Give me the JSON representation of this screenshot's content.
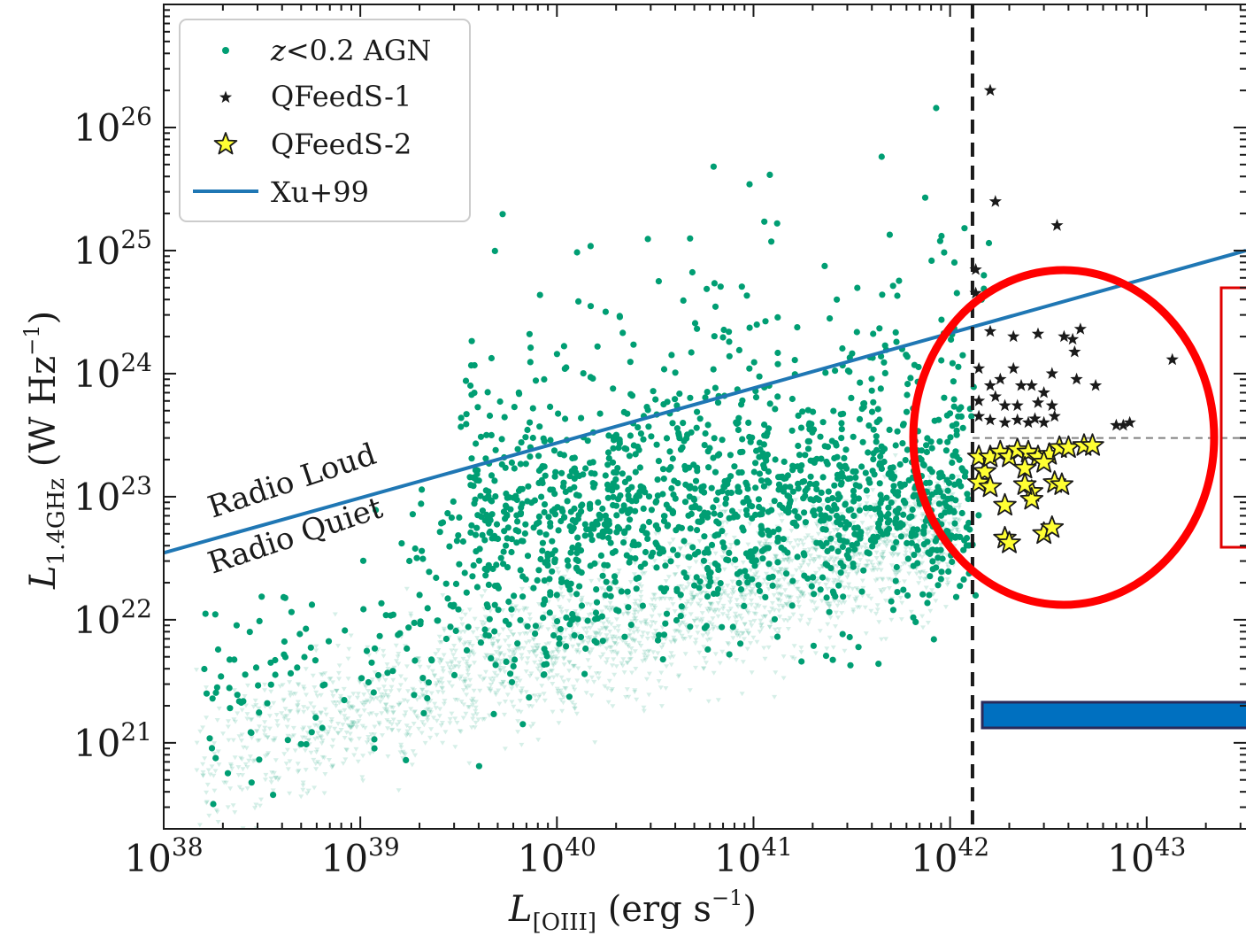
{
  "chart_data": {
    "type": "scatter",
    "x_scale": "log",
    "y_scale": "log",
    "xlim": [
      1e+38,
      3.2e+43
    ],
    "ylim": [
      2e+20,
      1e+27
    ],
    "x_ticks": [
      {
        "value": 1e+38,
        "base": "10",
        "exp": "38"
      },
      {
        "value": 1e+39,
        "base": "10",
        "exp": "39"
      },
      {
        "value": 1e+40,
        "base": "10",
        "exp": "40"
      },
      {
        "value": 1e+41,
        "base": "10",
        "exp": "41"
      },
      {
        "value": 1e+42,
        "base": "10",
        "exp": "42"
      },
      {
        "value": 1e+43,
        "base": "10",
        "exp": "43"
      }
    ],
    "y_ticks": [
      {
        "value": 1e+21,
        "base": "10",
        "exp": "21"
      },
      {
        "value": 1e+22,
        "base": "10",
        "exp": "22"
      },
      {
        "value": 1e+23,
        "base": "10",
        "exp": "23"
      },
      {
        "value": 1e+24,
        "base": "10",
        "exp": "24"
      },
      {
        "value": 1e+25,
        "base": "10",
        "exp": "25"
      },
      {
        "value": 1e+26,
        "base": "10",
        "exp": "26"
      }
    ],
    "xlabel": {
      "main": "L",
      "sub": "[OIII]",
      "unit": " (erg s",
      "unit_exp": "−1",
      "close": ")"
    },
    "ylabel": {
      "main": "L",
      "sub": "1.4GHz",
      "unit": " (W Hz",
      "unit_exp": "−1",
      "close": ")"
    },
    "grid": false,
    "legend": {
      "placement": "upper-left",
      "entries": [
        {
          "marker": "dot",
          "italic": "z",
          "text": "<0.2 AGN"
        },
        {
          "marker": "small-star",
          "italic": "",
          "text": "QFeedS-1"
        },
        {
          "marker": "yellow-star",
          "italic": "",
          "text": "QFeedS-2"
        },
        {
          "marker": "line",
          "italic": "",
          "text": "Xu+99"
        }
      ]
    },
    "annotations": {
      "radio_loud": "Radio Loud",
      "radio_quiet": "Radio Quiet"
    },
    "colors": {
      "agn": "#009e73",
      "qfeeds1": "#1a1a1a",
      "qfeeds2": "#ffff33",
      "xu99_line": "#1f77b4",
      "highlight_circle": "#ff0000",
      "highlight_box": "#e00000",
      "bar_fill": "#0070c0",
      "bar_edge": "#2a2a5a"
    },
    "xu99_line": {
      "x": [
        1e+38,
        3.2e+43
      ],
      "y": [
        3.5e+22,
        1e+25
      ]
    },
    "luminosity_cut": {
      "x": 1.3e+42
    },
    "qfeeds_threshold": {
      "y": 3e+23,
      "x_start": 1.3e+42
    },
    "series": [
      {
        "name": "QFeedS-1",
        "marker": "small-star",
        "points": [
          [
            1.6e+42,
            2e+26
          ],
          [
            1.7e+42,
            2.5e+25
          ],
          [
            3.5e+42,
            1.6e+25
          ],
          [
            1.35e+42,
            7e+24
          ],
          [
            1.35e+42,
            4.5e+24
          ],
          [
            1.6e+42,
            2.2e+24
          ],
          [
            2.1e+42,
            2e+24
          ],
          [
            2.8e+42,
            2.1e+24
          ],
          [
            3.8e+42,
            2e+24
          ],
          [
            4.2e+42,
            1.9e+24
          ],
          [
            4.6e+42,
            2.3e+24
          ],
          [
            4.3e+42,
            1.5e+24
          ],
          [
            1.4e+42,
            1.1e+24
          ],
          [
            1.8e+42,
            9e+23
          ],
          [
            2.1e+42,
            1.1e+24
          ],
          [
            1.6e+42,
            8e+23
          ],
          [
            2.3e+42,
            8e+23
          ],
          [
            2.6e+42,
            8e+23
          ],
          [
            3e+42,
            7e+23
          ],
          [
            3.3e+42,
            1e+24
          ],
          [
            4.4e+42,
            9e+23
          ],
          [
            5.5e+42,
            8e+23
          ],
          [
            1.4e+42,
            6e+23
          ],
          [
            1.7e+42,
            6.5e+23
          ],
          [
            1.9e+42,
            5.5e+23
          ],
          [
            2.2e+42,
            5.5e+23
          ],
          [
            2.8e+42,
            5.8e+23
          ],
          [
            3.3e+42,
            5.5e+23
          ],
          [
            1.4e+42,
            4.5e+23
          ],
          [
            1.6e+42,
            4.2e+23
          ],
          [
            2.2e+42,
            4.2e+23
          ],
          [
            2.5e+42,
            4e+23
          ],
          [
            3e+42,
            4e+23
          ],
          [
            3.4e+42,
            4.5e+23
          ],
          [
            7e+42,
            3.8e+23
          ],
          [
            7.6e+42,
            3.8e+23
          ],
          [
            8.2e+42,
            4e+23
          ],
          [
            1.35e+43,
            1.3e+24
          ],
          [
            1.9e+42,
            4e+23
          ],
          [
            2.7e+42,
            4.3e+23
          ]
        ]
      },
      {
        "name": "QFeedS-2",
        "marker": "yellow-star",
        "points": [
          [
            1.4e+42,
            2.1e+23
          ],
          [
            1.5e+42,
            1.6e+23
          ],
          [
            1.6e+42,
            2.1e+23
          ],
          [
            1.8e+42,
            2.3e+23
          ],
          [
            2e+42,
            2.1e+23
          ],
          [
            2.2e+42,
            2.4e+23
          ],
          [
            2.5e+42,
            2.3e+23
          ],
          [
            2.8e+42,
            2.1e+23
          ],
          [
            3.2e+42,
            2.2e+23
          ],
          [
            3.6e+42,
            2.5e+23
          ],
          [
            4e+42,
            2.5e+23
          ],
          [
            4.8e+42,
            2.6e+23
          ],
          [
            5.3e+42,
            2.6e+23
          ],
          [
            2.4e+42,
            1.7e+23
          ],
          [
            3e+42,
            1.9e+23
          ],
          [
            1.4e+42,
            1.3e+23
          ],
          [
            1.6e+42,
            1.2e+23
          ],
          [
            2.6e+42,
            1.1e+23
          ],
          [
            3.4e+42,
            1.3e+23
          ],
          [
            1.9e+42,
            8.5e+22
          ],
          [
            2.6e+42,
            9.5e+22
          ],
          [
            1.9e+42,
            4.6e+22
          ],
          [
            2e+42,
            4.2e+22
          ],
          [
            3e+42,
            5e+22
          ],
          [
            3.3e+42,
            5.6e+22
          ],
          [
            2.4e+42,
            1.25e+23
          ],
          [
            3.7e+42,
            1.25e+23
          ]
        ]
      }
    ]
  }
}
